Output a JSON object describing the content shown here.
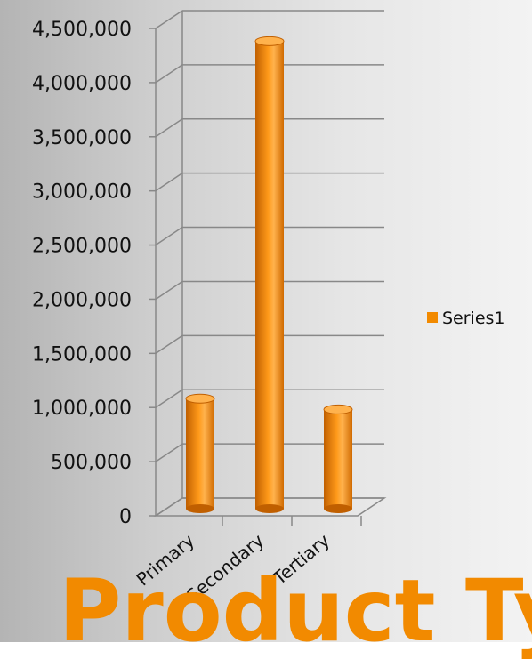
{
  "chart_data": {
    "type": "bar",
    "title": "Product Ty",
    "categories": [
      "Primary",
      "Secondary",
      "Tertiary"
    ],
    "series": [
      {
        "name": "Series1",
        "values": [
          1000000,
          4300000,
          900000
        ],
        "color": "#f28a00"
      }
    ],
    "y_ticks": [
      "0",
      "500,000",
      "1,000,000",
      "1,500,000",
      "2,000,000",
      "2,500,000",
      "3,000,000",
      "3,500,000",
      "4,000,000",
      "4,500,000"
    ],
    "ylim": [
      0,
      4500000
    ],
    "grid": true,
    "legend_position": "right",
    "three_d": true,
    "colors": {
      "bar": "#f28a00",
      "bar_dark": "#c05f00",
      "bar_light": "#ffb24d",
      "title": "#f28a00",
      "grid": "#888888"
    }
  }
}
